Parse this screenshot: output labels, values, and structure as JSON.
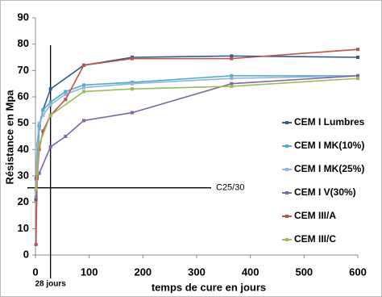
{
  "chart_data": {
    "type": "line",
    "xlabel": "temps de cure en jours",
    "ylabel": "Résistance en Mpa",
    "xlim": [
      0,
      600
    ],
    "xticks": [
      0,
      100,
      200,
      300,
      400,
      500,
      600
    ],
    "ylim": [
      0,
      90
    ],
    "yticks": [
      0,
      10,
      20,
      30,
      40,
      50,
      60,
      70,
      80,
      90
    ],
    "legend": "right",
    "annotations": [
      {
        "text": "C25/30",
        "y": 25.5
      },
      {
        "text": "28 jours",
        "x": 28
      }
    ],
    "series": [
      {
        "name": "CEM I Lumbres",
        "color": "#2e5c8a",
        "x": [
          1,
          3,
          7,
          14,
          28,
          90,
          180,
          365,
          600
        ],
        "values": [
          21,
          42,
          49,
          55,
          63,
          72,
          75,
          75.5,
          75
        ]
      },
      {
        "name": "CEM I MK(10%)",
        "color": "#4bacc6",
        "x": [
          1,
          3,
          7,
          14,
          28,
          56,
          90,
          180,
          365,
          600
        ],
        "values": [
          22,
          30,
          48,
          55,
          58,
          62,
          64.5,
          65.5,
          68,
          68
        ]
      },
      {
        "name": "CEM I MK(25%)",
        "color": "#8db4e2",
        "x": [
          1,
          3,
          7,
          14,
          28,
          56,
          90,
          180,
          365,
          600
        ],
        "values": [
          24,
          42,
          50,
          53,
          57,
          61,
          63.5,
          65,
          67,
          68
        ]
      },
      {
        "name": "CEM I V(30%)",
        "color": "#8064a2",
        "x": [
          1,
          3,
          7,
          28,
          56,
          90,
          180,
          365,
          600
        ],
        "values": [
          29,
          30,
          31,
          41,
          45,
          51,
          54,
          65,
          68
        ]
      },
      {
        "name": "CEM III/A",
        "color": "#c0504d",
        "x": [
          1,
          3,
          7,
          14,
          28,
          56,
          90,
          180,
          365,
          600
        ],
        "values": [
          4,
          29,
          40,
          47,
          53,
          59,
          72,
          74.5,
          74.5,
          78
        ]
      },
      {
        "name": "CEM III/C",
        "color": "#9bbb59",
        "x": [
          1,
          3,
          7,
          28,
          90,
          180,
          365,
          600
        ],
        "values": [
          25,
          31,
          42,
          53,
          62,
          63,
          64,
          67
        ]
      }
    ]
  }
}
